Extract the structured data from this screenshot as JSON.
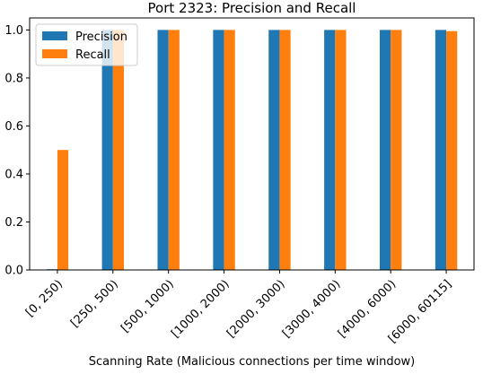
{
  "chart_data": {
    "type": "bar",
    "title": "Port 2323: Precision and Recall",
    "xlabel": "Scanning Rate (Malicious connections per time window)",
    "ylabel": "",
    "ylim": [
      0,
      1.05
    ],
    "yticks": [
      "0.0",
      "0.2",
      "0.4",
      "0.6",
      "0.8",
      "1.0"
    ],
    "categories": [
      "[0, 250)",
      "[250, 500)",
      "[500, 1000)",
      "[1000, 2000)",
      "[2000, 3000)",
      "[3000, 4000)",
      "[4000, 6000)",
      "[6000, 60115]"
    ],
    "series": [
      {
        "name": "Precision",
        "color": "#1f77b4",
        "values": [
          0.003,
          1.0,
          1.0,
          1.0,
          1.0,
          1.0,
          1.0,
          1.0
        ]
      },
      {
        "name": "Recall",
        "color": "#ff7f0e",
        "values": [
          0.5,
          1.0,
          1.0,
          1.0,
          1.0,
          1.0,
          1.0,
          0.995
        ]
      }
    ],
    "legend_position": "top-left",
    "grid": false
  }
}
